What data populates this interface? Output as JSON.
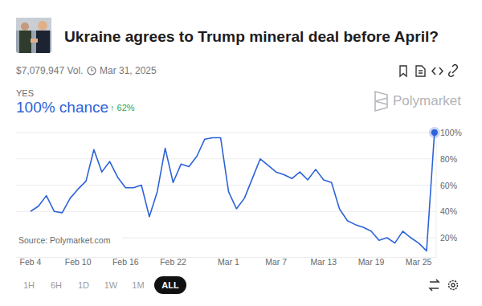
{
  "header": {
    "title": "Ukraine agrees to Trump mineral deal before April?",
    "volume": "$7,079,947 Vol.",
    "end_date": "Mar 31, 2025",
    "outcome": "YES",
    "chance": "100% chance",
    "change": "↑ 62%",
    "brand": "Polymarket"
  },
  "chart_data": {
    "type": "line",
    "categories": [
      "Feb 4",
      null,
      null,
      null,
      null,
      null,
      "Feb 10",
      null,
      null,
      null,
      null,
      null,
      "Feb 16",
      null,
      null,
      null,
      null,
      null,
      "Feb 22",
      null,
      null,
      null,
      null,
      null,
      null,
      "Mar 1",
      null,
      null,
      null,
      null,
      null,
      "Mar 7",
      null,
      null,
      null,
      null,
      null,
      "Mar 13",
      null,
      null,
      null,
      null,
      null,
      "Mar 19",
      null,
      null,
      null,
      null,
      null,
      "Mar 25",
      null,
      null
    ],
    "values": [
      40,
      44,
      52,
      40,
      39,
      50,
      57,
      63,
      87,
      70,
      78,
      66,
      58,
      58,
      60,
      36,
      55,
      88,
      62,
      76,
      74,
      82,
      95,
      96,
      96,
      55,
      42,
      50,
      65,
      80,
      75,
      70,
      68,
      65,
      70,
      64,
      72,
      64,
      62,
      42,
      33,
      30,
      28,
      25,
      18,
      20,
      16,
      25,
      20,
      16,
      10,
      100
    ],
    "color": "#2d63d8",
    "ylim": [
      5,
      100
    ],
    "yticks": [
      {
        "value": 20,
        "label": "20%"
      },
      {
        "value": 40,
        "label": "40%"
      },
      {
        "value": 60,
        "label": "60%"
      },
      {
        "value": 80,
        "label": "80%"
      },
      {
        "value": 100,
        "label": "100%"
      }
    ],
    "grid": true,
    "annotations": [
      "Source: Polymarket.com"
    ]
  },
  "controls": {
    "ranges": [
      "1H",
      "6H",
      "1D",
      "1W",
      "1M",
      "ALL"
    ],
    "selected": "ALL"
  }
}
